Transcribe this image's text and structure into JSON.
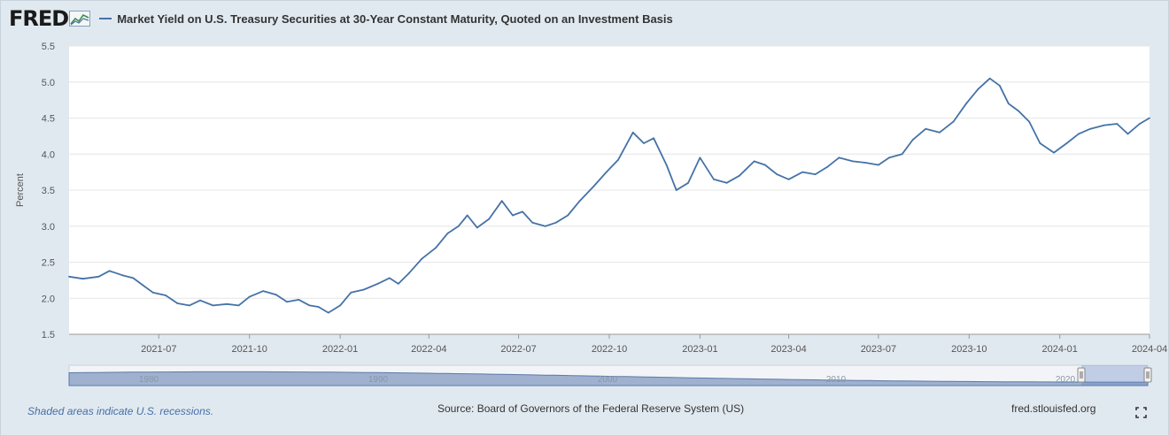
{
  "header": {
    "logo_text": "FRED",
    "title": "Market Yield on U.S. Treasury Securities at 30-Year Constant Maturity, Quoted on an Investment Basis"
  },
  "chart_data": {
    "type": "line",
    "ylabel": "Percent",
    "ylim": [
      1.5,
      5.5
    ],
    "y_ticks": [
      "5.5",
      "5.0",
      "4.5",
      "4.0",
      "3.5",
      "3.0",
      "2.5",
      "2.0",
      "1.5"
    ],
    "x_ticks": [
      "2021-07",
      "2021-10",
      "2022-01",
      "2022-04",
      "2022-07",
      "2022-10",
      "2023-01",
      "2023-04",
      "2023-07",
      "2023-10",
      "2024-01",
      "2024-04"
    ],
    "x_range": [
      "2021-04-01",
      "2024-04-01"
    ],
    "grid": true,
    "series": [
      {
        "color": "#4572a7",
        "points": [
          [
            "2021-04-01",
            2.3
          ],
          [
            "2021-04-15",
            2.27
          ],
          [
            "2021-05-01",
            2.3
          ],
          [
            "2021-05-12",
            2.38
          ],
          [
            "2021-05-25",
            2.32
          ],
          [
            "2021-06-05",
            2.28
          ],
          [
            "2021-06-15",
            2.18
          ],
          [
            "2021-06-25",
            2.08
          ],
          [
            "2021-07-08",
            2.04
          ],
          [
            "2021-07-20",
            1.93
          ],
          [
            "2021-08-01",
            1.9
          ],
          [
            "2021-08-12",
            1.97
          ],
          [
            "2021-08-25",
            1.9
          ],
          [
            "2021-09-08",
            1.92
          ],
          [
            "2021-09-20",
            1.9
          ],
          [
            "2021-10-01",
            2.02
          ],
          [
            "2021-10-15",
            2.1
          ],
          [
            "2021-10-28",
            2.05
          ],
          [
            "2021-11-08",
            1.95
          ],
          [
            "2021-11-20",
            1.98
          ],
          [
            "2021-12-01",
            1.9
          ],
          [
            "2021-12-10",
            1.88
          ],
          [
            "2021-12-20",
            1.8
          ],
          [
            "2022-01-01",
            1.9
          ],
          [
            "2022-01-12",
            2.08
          ],
          [
            "2022-01-25",
            2.12
          ],
          [
            "2022-02-08",
            2.2
          ],
          [
            "2022-02-20",
            2.28
          ],
          [
            "2022-03-01",
            2.2
          ],
          [
            "2022-03-12",
            2.35
          ],
          [
            "2022-03-25",
            2.55
          ],
          [
            "2022-04-08",
            2.7
          ],
          [
            "2022-04-20",
            2.9
          ],
          [
            "2022-05-01",
            3.0
          ],
          [
            "2022-05-10",
            3.15
          ],
          [
            "2022-05-20",
            2.98
          ],
          [
            "2022-06-01",
            3.1
          ],
          [
            "2022-06-14",
            3.35
          ],
          [
            "2022-06-25",
            3.15
          ],
          [
            "2022-07-05",
            3.2
          ],
          [
            "2022-07-15",
            3.05
          ],
          [
            "2022-07-28",
            3.0
          ],
          [
            "2022-08-08",
            3.05
          ],
          [
            "2022-08-20",
            3.15
          ],
          [
            "2022-09-01",
            3.35
          ],
          [
            "2022-09-15",
            3.55
          ],
          [
            "2022-09-28",
            3.75
          ],
          [
            "2022-10-10",
            3.92
          ],
          [
            "2022-10-25",
            4.3
          ],
          [
            "2022-11-05",
            4.15
          ],
          [
            "2022-11-15",
            4.22
          ],
          [
            "2022-11-28",
            3.85
          ],
          [
            "2022-12-08",
            3.5
          ],
          [
            "2022-12-20",
            3.6
          ],
          [
            "2023-01-01",
            3.95
          ],
          [
            "2023-01-15",
            3.65
          ],
          [
            "2023-01-28",
            3.6
          ],
          [
            "2023-02-10",
            3.7
          ],
          [
            "2023-02-25",
            3.9
          ],
          [
            "2023-03-08",
            3.85
          ],
          [
            "2023-03-20",
            3.72
          ],
          [
            "2023-04-01",
            3.65
          ],
          [
            "2023-04-15",
            3.75
          ],
          [
            "2023-04-28",
            3.72
          ],
          [
            "2023-05-10",
            3.82
          ],
          [
            "2023-05-22",
            3.95
          ],
          [
            "2023-06-05",
            3.9
          ],
          [
            "2023-06-18",
            3.88
          ],
          [
            "2023-07-01",
            3.85
          ],
          [
            "2023-07-12",
            3.95
          ],
          [
            "2023-07-25",
            4.0
          ],
          [
            "2023-08-05",
            4.2
          ],
          [
            "2023-08-18",
            4.35
          ],
          [
            "2023-09-01",
            4.3
          ],
          [
            "2023-09-15",
            4.45
          ],
          [
            "2023-09-28",
            4.7
          ],
          [
            "2023-10-10",
            4.9
          ],
          [
            "2023-10-22",
            5.05
          ],
          [
            "2023-11-01",
            4.95
          ],
          [
            "2023-11-10",
            4.7
          ],
          [
            "2023-11-20",
            4.6
          ],
          [
            "2023-12-01",
            4.45
          ],
          [
            "2023-12-12",
            4.15
          ],
          [
            "2023-12-26",
            4.02
          ],
          [
            "2024-01-08",
            4.15
          ],
          [
            "2024-01-20",
            4.28
          ],
          [
            "2024-02-01",
            4.35
          ],
          [
            "2024-02-15",
            4.4
          ],
          [
            "2024-02-28",
            4.42
          ],
          [
            "2024-03-10",
            4.28
          ],
          [
            "2024-03-22",
            4.42
          ],
          [
            "2024-04-01",
            4.5
          ]
        ]
      }
    ],
    "navigator": {
      "labels": [
        "1980",
        "1990",
        "2000",
        "2010",
        "2020"
      ]
    }
  },
  "footer": {
    "recession_note": "Shaded areas indicate U.S. recessions.",
    "source": "Source: Board of Governors of the Federal Reserve System (US)",
    "site": "fred.stlouisfed.org"
  }
}
